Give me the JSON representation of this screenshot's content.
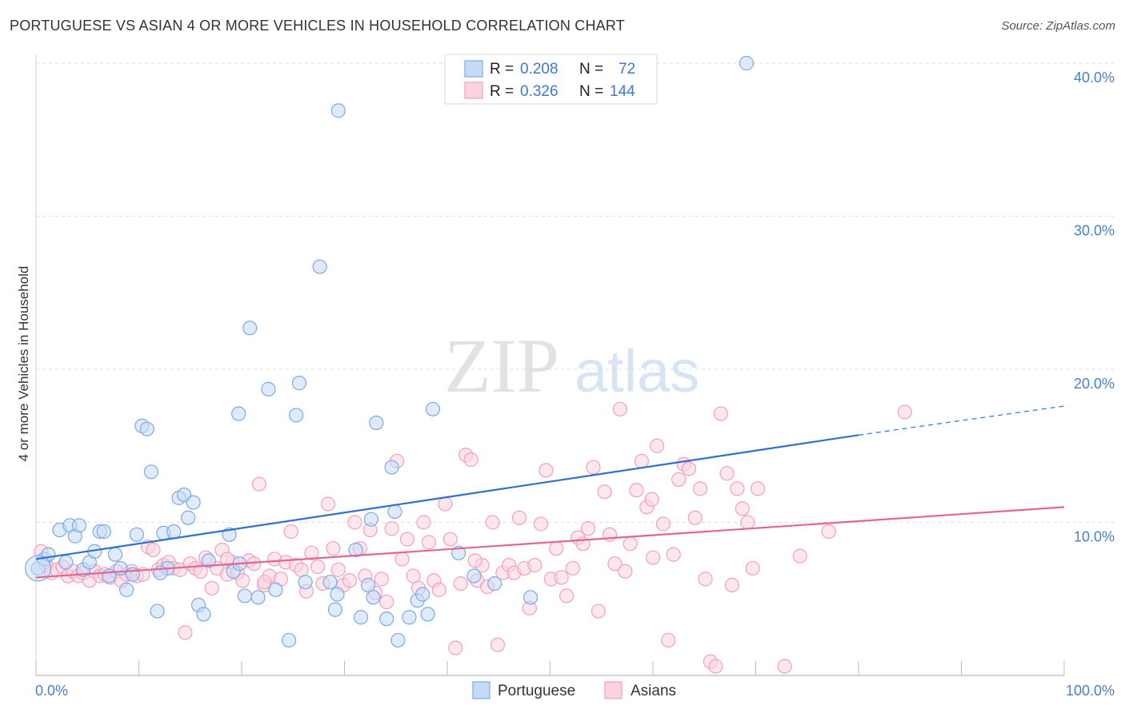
{
  "header": {
    "title": "PORTUGUESE VS ASIAN 4 OR MORE VEHICLES IN HOUSEHOLD CORRELATION CHART",
    "source": "Source: ZipAtlas.com"
  },
  "watermark": {
    "part1": "ZIP",
    "part2": "atlas"
  },
  "stats": {
    "portuguese": {
      "r_label": "R =",
      "r_value": "0.208",
      "n_label": "N =",
      "n_value": "72"
    },
    "asians": {
      "r_label": "R =",
      "r_value": "0.326",
      "n_label": "N =",
      "n_value": "144"
    }
  },
  "colors": {
    "blue": "#7aaae8",
    "blue_line": "#2f6fd1",
    "pink": "#f4a0bc",
    "pink_line": "#e2668e",
    "tick_text": "#4a7fd0"
  },
  "chart_data": {
    "type": "scatter",
    "xlabel": "",
    "ylabel": "4 or more Vehicles in Household",
    "xlim": [
      0,
      100
    ],
    "ylim": [
      0,
      40
    ],
    "x_tick_labels": [
      "0.0%",
      "100.0%"
    ],
    "y_ticks": [
      10,
      20,
      30,
      40
    ],
    "y_tick_labels": [
      "10.0%",
      "20.0%",
      "30.0%",
      "40.0%"
    ],
    "grid": "horizontal dashed",
    "legend": [
      "Portuguese",
      "Asians"
    ],
    "series": [
      {
        "name": "Portuguese",
        "color": "#7aaae8",
        "trend": {
          "x0": 0,
          "y0": 7.6,
          "x1": 80,
          "y1": 15.7,
          "dashed_to_x": 100,
          "dashed_to_y": 17.6
        },
        "points": [
          [
            0.2,
            7.0
          ],
          [
            0.8,
            7.6
          ],
          [
            1.2,
            7.9
          ],
          [
            2.3,
            9.5
          ],
          [
            2.9,
            7.4
          ],
          [
            3.3,
            9.8
          ],
          [
            3.8,
            9.1
          ],
          [
            4.2,
            9.8
          ],
          [
            4.6,
            6.9
          ],
          [
            5.2,
            7.4
          ],
          [
            5.7,
            8.1
          ],
          [
            6.2,
            9.4
          ],
          [
            6.6,
            9.4
          ],
          [
            7.1,
            6.5
          ],
          [
            7.7,
            7.9
          ],
          [
            8.2,
            7.0
          ],
          [
            8.8,
            5.6
          ],
          [
            9.4,
            6.6
          ],
          [
            9.8,
            9.2
          ],
          [
            10.3,
            16.3
          ],
          [
            10.8,
            16.1
          ],
          [
            11.2,
            13.3
          ],
          [
            11.8,
            4.2
          ],
          [
            12.4,
            9.3
          ],
          [
            12.8,
            7.0
          ],
          [
            13.4,
            9.4
          ],
          [
            13.9,
            11.6
          ],
          [
            14.4,
            11.8
          ],
          [
            14.8,
            10.3
          ],
          [
            15.3,
            11.3
          ],
          [
            15.8,
            4.6
          ],
          [
            16.3,
            4.0
          ],
          [
            16.8,
            7.5
          ],
          [
            18.8,
            9.2
          ],
          [
            19.2,
            6.8
          ],
          [
            19.8,
            7.3
          ],
          [
            20.3,
            5.2
          ],
          [
            19.7,
            17.1
          ],
          [
            20.8,
            22.7
          ],
          [
            21.6,
            5.1
          ],
          [
            22.6,
            18.7
          ],
          [
            23.3,
            5.6
          ],
          [
            24.6,
            2.3
          ],
          [
            25.3,
            17.0
          ],
          [
            25.6,
            19.1
          ],
          [
            26.2,
            6.1
          ],
          [
            27.6,
            26.7
          ],
          [
            28.6,
            6.1
          ],
          [
            29.1,
            4.3
          ],
          [
            29.3,
            5.3
          ],
          [
            29.4,
            36.9
          ],
          [
            31.1,
            8.2
          ],
          [
            31.6,
            3.8
          ],
          [
            32.3,
            5.9
          ],
          [
            32.6,
            10.2
          ],
          [
            32.8,
            5.1
          ],
          [
            33.1,
            16.5
          ],
          [
            34.1,
            3.7
          ],
          [
            34.6,
            13.6
          ],
          [
            35.2,
            2.3
          ],
          [
            36.3,
            3.8
          ],
          [
            37.1,
            4.9
          ],
          [
            37.6,
            5.3
          ],
          [
            38.1,
            4.0
          ],
          [
            38.6,
            17.4
          ],
          [
            41.1,
            8.0
          ],
          [
            42.6,
            6.5
          ],
          [
            44.6,
            6.0
          ],
          [
            48.1,
            5.1
          ],
          [
            69.1,
            40.0
          ],
          [
            34.9,
            10.7
          ],
          [
            12.1,
            6.7
          ]
        ]
      },
      {
        "name": "Asians",
        "color": "#f4a0bc",
        "trend": {
          "x0": 0,
          "y0": 6.4,
          "x1": 100,
          "y1": 11.0
        },
        "points": [
          [
            0.5,
            8.1
          ],
          [
            1.0,
            7.2
          ],
          [
            1.5,
            6.7
          ],
          [
            2.0,
            6.9
          ],
          [
            2.6,
            7.1
          ],
          [
            3.1,
            6.5
          ],
          [
            3.6,
            6.8
          ],
          [
            4.1,
            6.5
          ],
          [
            4.6,
            6.7
          ],
          [
            5.2,
            6.2
          ],
          [
            5.7,
            6.8
          ],
          [
            6.2,
            6.5
          ],
          [
            6.7,
            6.6
          ],
          [
            7.2,
            6.4
          ],
          [
            7.8,
            6.8
          ],
          [
            8.3,
            6.2
          ],
          [
            8.8,
            6.6
          ],
          [
            9.3,
            6.8
          ],
          [
            9.8,
            6.5
          ],
          [
            10.4,
            6.6
          ],
          [
            10.9,
            8.4
          ],
          [
            11.4,
            8.2
          ],
          [
            11.9,
            6.9
          ],
          [
            12.4,
            7.2
          ],
          [
            12.9,
            7.4
          ],
          [
            13.4,
            7.0
          ],
          [
            14.0,
            6.9
          ],
          [
            14.5,
            2.8
          ],
          [
            15.0,
            7.3
          ],
          [
            15.5,
            7.0
          ],
          [
            16.0,
            6.8
          ],
          [
            16.5,
            7.7
          ],
          [
            17.1,
            5.7
          ],
          [
            17.6,
            7.0
          ],
          [
            18.1,
            8.2
          ],
          [
            18.6,
            6.6
          ],
          [
            19.1,
            7.4
          ],
          [
            19.6,
            6.7
          ],
          [
            20.1,
            6.2
          ],
          [
            20.7,
            7.5
          ],
          [
            21.2,
            7.3
          ],
          [
            21.7,
            12.5
          ],
          [
            22.2,
            5.9
          ],
          [
            22.7,
            6.5
          ],
          [
            23.2,
            7.6
          ],
          [
            23.8,
            6.3
          ],
          [
            24.3,
            7.4
          ],
          [
            24.8,
            9.4
          ],
          [
            25.3,
            7.2
          ],
          [
            25.8,
            6.9
          ],
          [
            26.3,
            5.5
          ],
          [
            26.8,
            8.0
          ],
          [
            27.4,
            7.1
          ],
          [
            27.9,
            6.0
          ],
          [
            28.4,
            11.2
          ],
          [
            28.9,
            8.3
          ],
          [
            29.4,
            6.9
          ],
          [
            29.9,
            5.9
          ],
          [
            30.5,
            6.2
          ],
          [
            31.0,
            10.0
          ],
          [
            31.5,
            8.3
          ],
          [
            32.0,
            6.5
          ],
          [
            32.5,
            9.5
          ],
          [
            33.0,
            5.4
          ],
          [
            33.6,
            6.3
          ],
          [
            34.1,
            4.8
          ],
          [
            34.6,
            9.6
          ],
          [
            35.1,
            14.0
          ],
          [
            35.6,
            7.6
          ],
          [
            36.1,
            8.9
          ],
          [
            36.7,
            6.5
          ],
          [
            37.2,
            5.7
          ],
          [
            37.7,
            10.0
          ],
          [
            38.2,
            8.7
          ],
          [
            38.7,
            6.2
          ],
          [
            39.2,
            5.6
          ],
          [
            39.8,
            11.2
          ],
          [
            40.3,
            8.9
          ],
          [
            40.8,
            1.8
          ],
          [
            41.3,
            6.0
          ],
          [
            41.8,
            14.4
          ],
          [
            42.3,
            14.1
          ],
          [
            42.9,
            6.2
          ],
          [
            43.4,
            7.2
          ],
          [
            43.9,
            5.8
          ],
          [
            44.4,
            10.0
          ],
          [
            44.9,
            2.0
          ],
          [
            45.4,
            6.7
          ],
          [
            46.0,
            7.2
          ],
          [
            46.5,
            6.7
          ],
          [
            47.0,
            10.3
          ],
          [
            47.5,
            7.0
          ],
          [
            48.0,
            4.4
          ],
          [
            48.5,
            7.2
          ],
          [
            49.1,
            9.9
          ],
          [
            49.6,
            13.4
          ],
          [
            50.1,
            6.3
          ],
          [
            50.6,
            8.3
          ],
          [
            51.1,
            6.4
          ],
          [
            51.6,
            5.2
          ],
          [
            52.2,
            7.0
          ],
          [
            52.7,
            9.0
          ],
          [
            53.2,
            8.6
          ],
          [
            53.7,
            9.6
          ],
          [
            54.2,
            13.6
          ],
          [
            54.7,
            4.2
          ],
          [
            55.3,
            12.0
          ],
          [
            55.8,
            9.2
          ],
          [
            56.3,
            7.3
          ],
          [
            56.8,
            17.4
          ],
          [
            57.3,
            6.8
          ],
          [
            57.8,
            8.6
          ],
          [
            58.4,
            12.1
          ],
          [
            58.9,
            14.0
          ],
          [
            59.4,
            11.0
          ],
          [
            59.9,
            11.5
          ],
          [
            60.4,
            15.0
          ],
          [
            61.0,
            9.9
          ],
          [
            61.5,
            2.3
          ],
          [
            62.0,
            7.9
          ],
          [
            62.5,
            12.8
          ],
          [
            63.0,
            13.8
          ],
          [
            63.5,
            13.5
          ],
          [
            64.1,
            10.3
          ],
          [
            64.6,
            12.2
          ],
          [
            65.1,
            6.3
          ],
          [
            65.6,
            0.9
          ],
          [
            66.1,
            0.6
          ],
          [
            66.6,
            17.1
          ],
          [
            67.2,
            13.2
          ],
          [
            67.7,
            5.9
          ],
          [
            68.2,
            12.2
          ],
          [
            68.7,
            10.9
          ],
          [
            69.2,
            10.0
          ],
          [
            69.7,
            7.0
          ],
          [
            70.2,
            12.2
          ],
          [
            72.8,
            0.6
          ],
          [
            74.3,
            7.8
          ],
          [
            77.1,
            9.4
          ],
          [
            84.5,
            17.2
          ],
          [
            22.2,
            6.1
          ],
          [
            18.6,
            7.6
          ],
          [
            42.7,
            7.5
          ],
          [
            60.0,
            7.7
          ]
        ]
      }
    ]
  }
}
